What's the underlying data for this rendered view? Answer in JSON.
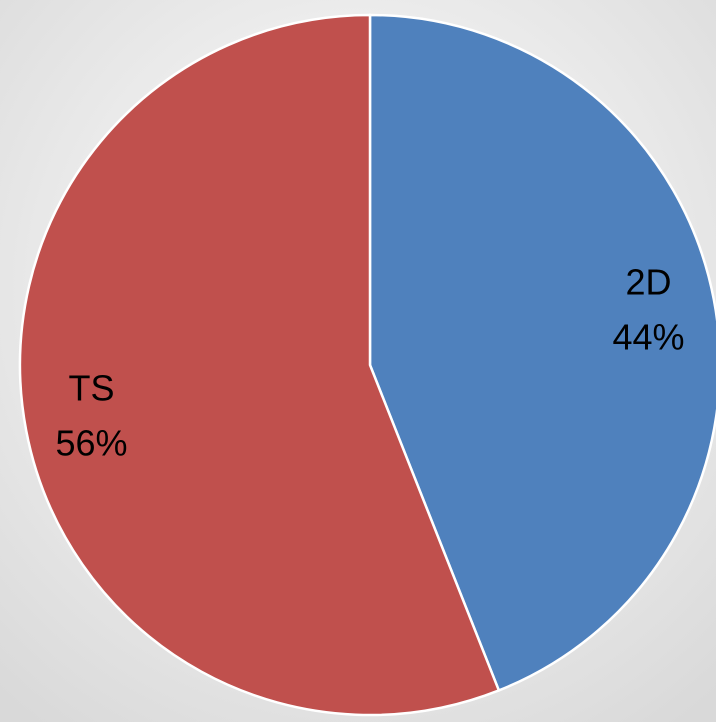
{
  "chart_data": {
    "type": "pie",
    "categories": [
      "2D",
      "TS"
    ],
    "values": [
      44,
      56
    ],
    "value_labels": [
      "44%",
      "56%"
    ],
    "colors": [
      "#4f81bd",
      "#c0504d"
    ]
  }
}
